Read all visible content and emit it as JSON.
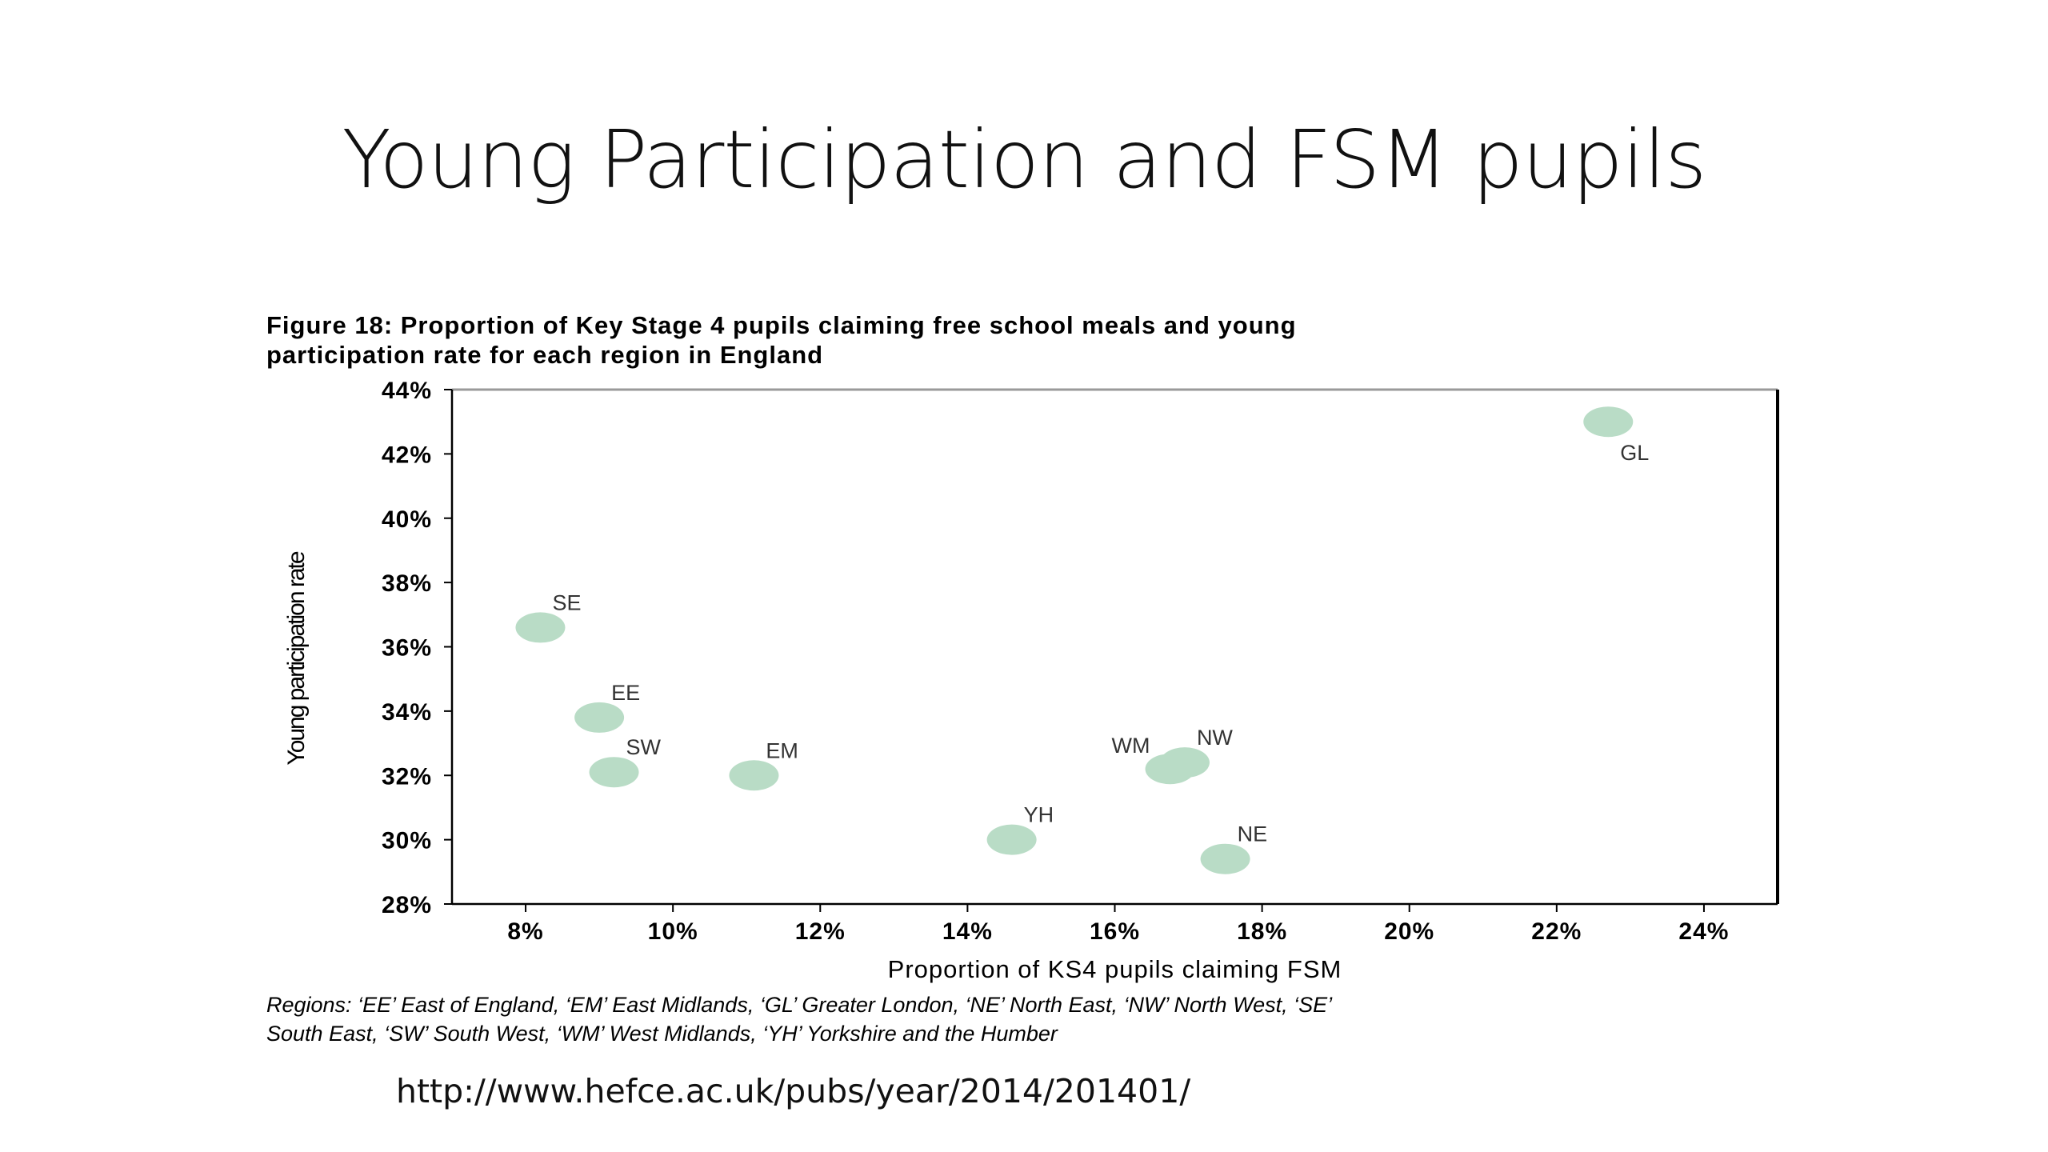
{
  "slide": {
    "title": "Young Participation and FSM pupils",
    "figure_caption_line1": "Figure 18: Proportion of Key Stage 4 pupils claiming free school meals and young",
    "figure_caption_line2": "participation rate for each region in England",
    "regions_note_line1": "Regions: ‘EE’ East of England, ‘EM’ East Midlands, ‘GL’ Greater London, ‘NE’ North East, ‘NW’ North West, ‘SE’",
    "regions_note_line2": "South East, ‘SW’ South West, ‘WM’ West Midlands, ‘YH’ Yorkshire and the Humber",
    "source_url": "http://www.hefce.ac.uk/pubs/year/2014/201401/"
  },
  "colors": {
    "marker": "#b9dcc6",
    "axis": "#000000",
    "frame": "#555555"
  },
  "chart_data": {
    "type": "scatter",
    "xlabel": "Proportion of KS4 pupils claiming FSM",
    "ylabel": "Young participation rate",
    "xlim": [
      7,
      25
    ],
    "ylim": [
      28,
      44
    ],
    "x_ticks": [
      8,
      10,
      12,
      14,
      16,
      18,
      20,
      22,
      24
    ],
    "y_ticks": [
      28,
      30,
      32,
      34,
      36,
      38,
      40,
      42,
      44
    ],
    "tick_suffix": "%",
    "grid": false,
    "points": [
      {
        "label": "GL",
        "x": 22.7,
        "y": 43.0,
        "label_pos": "below-right"
      },
      {
        "label": "SE",
        "x": 8.2,
        "y": 36.6,
        "label_pos": "above-right"
      },
      {
        "label": "EE",
        "x": 9.0,
        "y": 33.8,
        "label_pos": "above-right"
      },
      {
        "label": "SW",
        "x": 9.2,
        "y": 32.1,
        "label_pos": "above-right"
      },
      {
        "label": "EM",
        "x": 11.1,
        "y": 32.0,
        "label_pos": "above-right"
      },
      {
        "label": "YH",
        "x": 14.6,
        "y": 30.0,
        "label_pos": "above-right"
      },
      {
        "label": "WM",
        "x": 16.75,
        "y": 32.2,
        "label_pos": "above-left"
      },
      {
        "label": "NW",
        "x": 16.95,
        "y": 32.4,
        "label_pos": "above-right"
      },
      {
        "label": "NE",
        "x": 17.5,
        "y": 29.4,
        "label_pos": "above-right"
      }
    ]
  }
}
